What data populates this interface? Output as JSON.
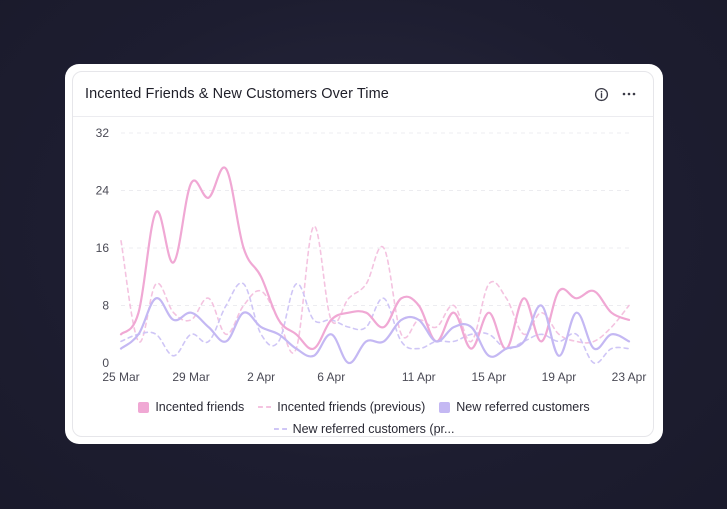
{
  "card": {
    "title": "Incented Friends & New Customers Over Time",
    "info_icon": "info-circle-icon",
    "more_icon": "more-horizontal-icon"
  },
  "legend": [
    {
      "label": "Incented friends",
      "style": "solid",
      "color": "#f0a8d4"
    },
    {
      "label": "Incented friends (previous)",
      "style": "dashed",
      "color": "#f4c3e0"
    },
    {
      "label": "New referred customers",
      "style": "solid",
      "color": "#c4b8f3"
    },
    {
      "label": "New referred customers (pr...",
      "style": "dashed",
      "color": "#cfc6f6"
    }
  ],
  "chart_data": {
    "type": "line",
    "title": "Incented Friends & New Customers Over Time",
    "x": [
      "25 Mar",
      "26 Mar",
      "27 Mar",
      "28 Mar",
      "29 Mar",
      "30 Mar",
      "31 Mar",
      "1 Apr",
      "2 Apr",
      "3 Apr",
      "4 Apr",
      "5 Apr",
      "6 Apr",
      "7 Apr",
      "8 Apr",
      "9 Apr",
      "10 Apr",
      "11 Apr",
      "12 Apr",
      "13 Apr",
      "14 Apr",
      "15 Apr",
      "16 Apr",
      "17 Apr",
      "18 Apr",
      "19 Apr",
      "20 Apr",
      "21 Apr",
      "22 Apr",
      "23 Apr"
    ],
    "x_tick_labels": [
      "25 Mar",
      "29 Mar",
      "2 Apr",
      "6 Apr",
      "11 Apr",
      "15 Apr",
      "19 Apr",
      "23 Apr"
    ],
    "y_ticks": [
      0,
      8,
      16,
      24,
      32
    ],
    "ylim": [
      0,
      32
    ],
    "grid": true,
    "legend_position": "bottom",
    "series": [
      {
        "name": "Incented friends",
        "style": "solid",
        "color": "#f0a8d4",
        "values": [
          4,
          7,
          21,
          14,
          25,
          23,
          27,
          16,
          12,
          6,
          4,
          2,
          6,
          7,
          7,
          5,
          9,
          8,
          3,
          7,
          2,
          7,
          2,
          9,
          3,
          10,
          9,
          10,
          7,
          6
        ]
      },
      {
        "name": "Incented friends (previous)",
        "style": "dashed",
        "color": "#f4c3e0",
        "values": [
          17,
          3,
          11,
          7,
          6,
          9,
          4,
          8,
          10,
          6,
          2,
          19,
          6,
          9,
          11,
          16,
          4,
          6,
          5,
          8,
          3,
          11,
          9,
          4,
          7,
          4,
          3,
          3,
          5,
          8
        ]
      },
      {
        "name": "New referred customers",
        "style": "solid",
        "color": "#c4b8f3",
        "values": [
          2,
          4,
          9,
          6,
          7,
          5,
          3,
          7,
          5,
          4,
          2,
          1,
          4,
          0,
          3,
          3,
          6,
          6,
          3,
          5,
          5,
          1,
          2,
          3,
          8,
          1,
          7,
          2,
          4,
          3
        ]
      },
      {
        "name": "New referred customers (pr...",
        "style": "dashed",
        "color": "#cfc6f6",
        "values": [
          3,
          4,
          4,
          1,
          4,
          3,
          8,
          11,
          4,
          3,
          11,
          6,
          6,
          5,
          5,
          9,
          3,
          2,
          3,
          3,
          4,
          4,
          2,
          3,
          4,
          3,
          4,
          0,
          2,
          2
        ]
      }
    ]
  }
}
